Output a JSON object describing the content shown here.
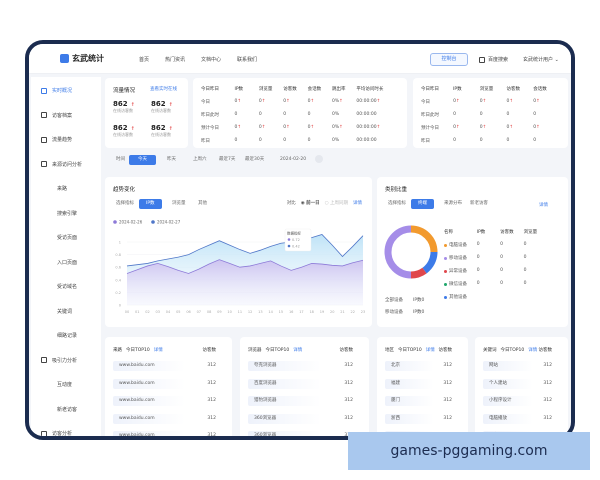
{
  "header": {
    "brand": "玄武统计",
    "nav": [
      "首页",
      "热门资讯",
      "文档中心",
      "联系我们"
    ],
    "console": "控制台",
    "search": "百度搜索",
    "user": "玄武统计用户"
  },
  "sidebar": {
    "items": [
      {
        "label": "实时概况",
        "icon": "monitor-icon",
        "active": true
      },
      {
        "label": "访客档案",
        "icon": "user-card-icon"
      },
      {
        "label": "流量趋势",
        "icon": "trend-icon"
      },
      {
        "label": "来源访问分析",
        "icon": "source-icon"
      },
      {
        "label": "来路"
      },
      {
        "label": "搜索引擎"
      },
      {
        "label": "受访页面"
      },
      {
        "label": "入口页面"
      },
      {
        "label": "受访域名"
      },
      {
        "label": "关键词"
      },
      {
        "label": "细路记录"
      },
      {
        "label": "吸引力分析",
        "icon": "target-icon"
      },
      {
        "label": "互动度"
      },
      {
        "label": "新老访客"
      },
      {
        "label": "访客分析",
        "icon": "person-icon"
      }
    ]
  },
  "traffic": {
    "title": "流量情况",
    "link": "查看实时在线",
    "stats": [
      {
        "value": "862",
        "label": "在线访客数"
      },
      {
        "value": "862",
        "label": "在线访客数"
      },
      {
        "value": "862",
        "label": "在线访客数"
      },
      {
        "value": "862",
        "label": "在线访客数"
      }
    ]
  },
  "table1": {
    "headers": [
      "今日昨日",
      "IP数",
      "浏览量",
      "访客数",
      "会话数",
      "跳出率",
      "平均访问时长"
    ],
    "rows": [
      [
        "今日",
        "0↑",
        "0↑",
        "0↑",
        "0↑",
        "0%↑",
        "00:00:00↑"
      ],
      [
        "昨日此时",
        "0",
        "0",
        "0",
        "0",
        "0%",
        "00:00:00"
      ],
      [
        "预计今日",
        "0↑",
        "0↑",
        "0↑",
        "0↑",
        "0%↑",
        "00:00:00↑"
      ],
      [
        "昨日",
        "0",
        "0",
        "0",
        "0",
        "0%",
        "00:00:00"
      ]
    ]
  },
  "table2": {
    "headers": [
      "今日昨日",
      "IP数",
      "浏览量",
      "访客数",
      "会话数"
    ],
    "rows": [
      [
        "今日",
        "0↑",
        "0↑",
        "0↑",
        "0↑"
      ],
      [
        "昨日此时",
        "0",
        "0",
        "0",
        "0"
      ],
      [
        "预计今日",
        "0↑",
        "0↑",
        "0↑",
        "0↑"
      ],
      [
        "昨日",
        "0",
        "0",
        "0",
        "0"
      ]
    ]
  },
  "filter": {
    "label": "时间",
    "options": [
      "今天",
      "昨天",
      "上周六",
      "最近7天",
      "最近30天"
    ],
    "active": 0,
    "date": "2024-02-20"
  },
  "trend": {
    "title": "趋势变化",
    "tabs": [
      "选择指标",
      "IP数",
      "浏览量",
      "其他"
    ],
    "active": 1,
    "compare": "对比",
    "opt1": "前一日",
    "opt2": "上周同期",
    "detail": "详情",
    "tooltip": {
      "title": "数据指标",
      "v1": "0.72",
      "v2": "0.42"
    }
  },
  "chart_data": {
    "type": "area",
    "x": [
      "00",
      "01",
      "02",
      "03",
      "04",
      "05",
      "06",
      "07",
      "08",
      "09",
      "10",
      "11",
      "12",
      "13",
      "14",
      "15",
      "16",
      "17",
      "18",
      "19",
      "20",
      "21",
      "22",
      "23"
    ],
    "yticks": [
      "0",
      "0.2",
      "0.4",
      "0.6",
      "0.8",
      "1"
    ],
    "ylim": [
      0,
      1.2
    ],
    "grid": true,
    "legend": "top-left",
    "series": [
      {
        "name": "2024-02-26",
        "color": "#8d7ad8",
        "values": [
          0.5,
          0.56,
          0.62,
          0.66,
          0.61,
          0.55,
          0.5,
          0.57,
          0.65,
          0.72,
          0.66,
          0.6,
          0.62,
          0.66,
          0.7,
          0.62,
          0.55,
          0.6,
          0.66,
          0.65,
          0.63,
          0.62,
          0.67,
          0.71
        ]
      },
      {
        "name": "2024-02-27",
        "color": "#4f76c8",
        "values": [
          0.62,
          0.64,
          0.66,
          0.7,
          0.73,
          0.76,
          0.8,
          0.88,
          0.95,
          1.02,
          0.95,
          0.88,
          0.82,
          0.87,
          0.93,
          0.98,
          1.0,
          1.03,
          1.07,
          1.12,
          0.95,
          0.77,
          0.93,
          1.1
        ]
      }
    ]
  },
  "category": {
    "title": "类别比重",
    "tabs": [
      "选择指标",
      "终端",
      "来源分布",
      "新老访客"
    ],
    "active": 1,
    "detail": "详情",
    "headers": [
      "名称",
      "IP数",
      "访客数",
      "浏览量"
    ],
    "items": [
      {
        "name": "电脑设备",
        "color": "#f29a2e",
        "share": 25,
        "v": [
          "0",
          "0",
          "0"
        ]
      },
      {
        "name": "移动设备",
        "color": "#a58de8",
        "share": 50,
        "v": [
          "0",
          "0",
          "0"
        ]
      },
      {
        "name": "异常设备",
        "color": "#e0474c",
        "share": 10,
        "v": [
          "0",
          "0",
          "0"
        ]
      },
      {
        "name": "微信设备",
        "color": "#1fa76b",
        "share": 0,
        "v": [
          "0",
          "0",
          "0"
        ]
      },
      {
        "name": "其他设备",
        "color": "#3d7be8",
        "share": 15
      }
    ],
    "summary": [
      [
        "全部设备",
        "IP数0"
      ],
      [
        "移动设备",
        "IP数0"
      ]
    ]
  },
  "bottom": [
    {
      "title": "来路",
      "sub": "今日TOP10",
      "link": "详情",
      "col": "访客数",
      "rows": [
        "www.baidu.com",
        "www.baidu.com",
        "www.baidu.com",
        "www.baidu.com",
        "www.baidu.com"
      ],
      "value": "312"
    },
    {
      "title": "浏览器",
      "sub": "今日TOP10",
      "link": "详情",
      "col": "访客数",
      "rows": [
        "夸克浏览器",
        "百度浏览器",
        "猎豹浏览器",
        "360浏览器",
        "360浏览器"
      ],
      "value": "312"
    },
    {
      "title": "地区",
      "sub": "今日TOP10",
      "link": "详情",
      "col": "访客数",
      "rows": [
        "北京",
        "福建",
        "厦门",
        "浙西",
        "山西"
      ],
      "value": "312"
    },
    {
      "title": "关键词",
      "sub": "今日TOP10",
      "link": "详情",
      "col": "访客数",
      "rows": [
        "网站",
        "个人建站",
        "小程序设计",
        "电脑播放",
        "安全须知"
      ],
      "value": "312"
    }
  ],
  "watermark": "games-pggaming.com"
}
